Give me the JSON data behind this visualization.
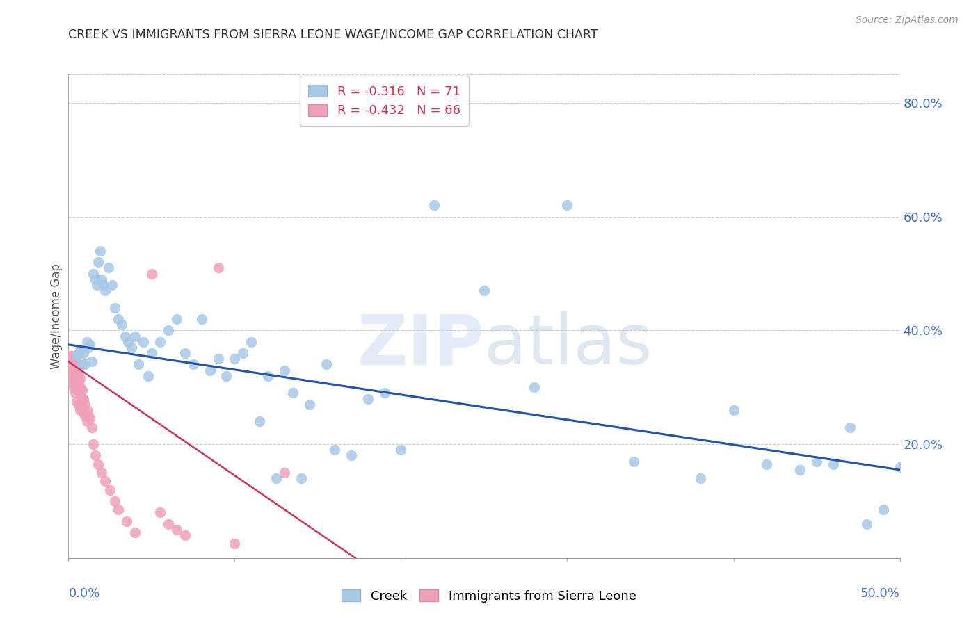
{
  "title": "CREEK VS IMMIGRANTS FROM SIERRA LEONE WAGE/INCOME GAP CORRELATION CHART",
  "source": "Source: ZipAtlas.com",
  "ylabel": "Wage/Income Gap",
  "xlim": [
    0.0,
    0.5
  ],
  "ylim": [
    0.0,
    0.85
  ],
  "legend_creek": "Creek",
  "legend_sl": "Immigrants from Sierra Leone",
  "r_creek": "-0.316",
  "n_creek": "71",
  "r_sl": "-0.432",
  "n_sl": "66",
  "creek_color": "#a8c8e8",
  "sl_color": "#f0a0b8",
  "creek_line_color": "#2255aa",
  "sl_line_color": "#cc3355",
  "axis_label_color": "#4472c4",
  "watermark_color": "#d0e4f4",
  "grid_color": "#cccccc",
  "creek_scatter_x": [
    0.005,
    0.006,
    0.007,
    0.008,
    0.009,
    0.01,
    0.011,
    0.012,
    0.013,
    0.014,
    0.015,
    0.016,
    0.017,
    0.018,
    0.019,
    0.02,
    0.021,
    0.022,
    0.024,
    0.026,
    0.028,
    0.03,
    0.032,
    0.034,
    0.036,
    0.038,
    0.04,
    0.042,
    0.045,
    0.048,
    0.05,
    0.055,
    0.06,
    0.065,
    0.07,
    0.075,
    0.08,
    0.085,
    0.09,
    0.095,
    0.1,
    0.105,
    0.11,
    0.115,
    0.12,
    0.125,
    0.13,
    0.135,
    0.14,
    0.145,
    0.155,
    0.16,
    0.17,
    0.18,
    0.19,
    0.2,
    0.22,
    0.25,
    0.28,
    0.3,
    0.34,
    0.38,
    0.4,
    0.42,
    0.44,
    0.45,
    0.46,
    0.47,
    0.48,
    0.49,
    0.5
  ],
  "creek_scatter_y": [
    0.355,
    0.36,
    0.365,
    0.34,
    0.36,
    0.34,
    0.38,
    0.37,
    0.375,
    0.345,
    0.5,
    0.49,
    0.48,
    0.52,
    0.54,
    0.49,
    0.48,
    0.47,
    0.51,
    0.48,
    0.44,
    0.42,
    0.41,
    0.39,
    0.38,
    0.37,
    0.39,
    0.34,
    0.38,
    0.32,
    0.36,
    0.38,
    0.4,
    0.42,
    0.36,
    0.34,
    0.42,
    0.33,
    0.35,
    0.32,
    0.35,
    0.36,
    0.38,
    0.24,
    0.32,
    0.14,
    0.33,
    0.29,
    0.14,
    0.27,
    0.34,
    0.19,
    0.18,
    0.28,
    0.29,
    0.19,
    0.62,
    0.47,
    0.3,
    0.62,
    0.17,
    0.14,
    0.26,
    0.165,
    0.155,
    0.17,
    0.165,
    0.23,
    0.06,
    0.085,
    0.16
  ],
  "sl_scatter_x": [
    0.001,
    0.001,
    0.001,
    0.001,
    0.001,
    0.002,
    0.002,
    0.002,
    0.002,
    0.002,
    0.002,
    0.003,
    0.003,
    0.003,
    0.003,
    0.003,
    0.003,
    0.004,
    0.004,
    0.004,
    0.004,
    0.004,
    0.005,
    0.005,
    0.005,
    0.005,
    0.005,
    0.005,
    0.006,
    0.006,
    0.006,
    0.006,
    0.007,
    0.007,
    0.007,
    0.007,
    0.008,
    0.008,
    0.008,
    0.009,
    0.009,
    0.01,
    0.01,
    0.011,
    0.011,
    0.012,
    0.013,
    0.014,
    0.015,
    0.016,
    0.018,
    0.02,
    0.022,
    0.025,
    0.028,
    0.03,
    0.035,
    0.04,
    0.05,
    0.055,
    0.06,
    0.065,
    0.07,
    0.09,
    0.1,
    0.13
  ],
  "sl_scatter_y": [
    0.345,
    0.33,
    0.32,
    0.31,
    0.355,
    0.34,
    0.33,
    0.32,
    0.31,
    0.345,
    0.355,
    0.335,
    0.325,
    0.315,
    0.35,
    0.34,
    0.3,
    0.335,
    0.325,
    0.31,
    0.345,
    0.29,
    0.33,
    0.32,
    0.31,
    0.34,
    0.295,
    0.275,
    0.325,
    0.31,
    0.295,
    0.27,
    0.315,
    0.3,
    0.29,
    0.26,
    0.295,
    0.28,
    0.265,
    0.28,
    0.255,
    0.27,
    0.25,
    0.26,
    0.24,
    0.25,
    0.245,
    0.23,
    0.2,
    0.18,
    0.165,
    0.15,
    0.135,
    0.12,
    0.1,
    0.085,
    0.065,
    0.045,
    0.5,
    0.08,
    0.06,
    0.05,
    0.04,
    0.51,
    0.025,
    0.15
  ],
  "creek_line_x": [
    0.0,
    0.5
  ],
  "creek_line_y": [
    0.375,
    0.155
  ],
  "sl_line_x": [
    0.0,
    0.175
  ],
  "sl_line_y": [
    0.345,
    -0.005
  ]
}
